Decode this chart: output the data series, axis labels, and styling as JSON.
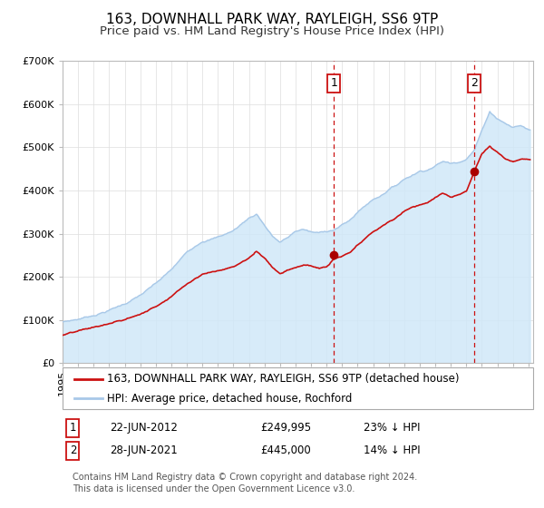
{
  "title": "163, DOWNHALL PARK WAY, RAYLEIGH, SS6 9TP",
  "subtitle": "Price paid vs. HM Land Registry's House Price Index (HPI)",
  "ylim": [
    0,
    700000
  ],
  "yticks": [
    0,
    100000,
    200000,
    300000,
    400000,
    500000,
    600000,
    700000
  ],
  "ytick_labels": [
    "£0",
    "£100K",
    "£200K",
    "£300K",
    "£400K",
    "£500K",
    "£600K",
    "£700K"
  ],
  "hpi_color": "#a8c8e8",
  "hpi_fill_color": "#d0e8f8",
  "price_color": "#cc1111",
  "marker_color": "#aa0000",
  "vline_color": "#cc1111",
  "grid_color": "#dddddd",
  "purchase1_year": 2012.47,
  "purchase1_price": 249995,
  "purchase1_label": "1",
  "purchase2_year": 2021.48,
  "purchase2_price": 445000,
  "purchase2_label": "2",
  "legend_line1": "163, DOWNHALL PARK WAY, RAYLEIGH, SS6 9TP (detached house)",
  "legend_line2": "HPI: Average price, detached house, Rochford",
  "note1_label": "1",
  "note1_date": "22-JUN-2012",
  "note1_price": "£249,995",
  "note1_pct": "23% ↓ HPI",
  "note2_label": "2",
  "note2_date": "28-JUN-2021",
  "note2_price": "£445,000",
  "note2_pct": "14% ↓ HPI",
  "footer": "Contains HM Land Registry data © Crown copyright and database right 2024.\nThis data is licensed under the Open Government Licence v3.0.",
  "title_fontsize": 11,
  "subtitle_fontsize": 9.5,
  "tick_fontsize": 8,
  "legend_fontsize": 8.5,
  "note_fontsize": 8.5,
  "footer_fontsize": 7,
  "hpi_keypoints": [
    [
      1995.0,
      95000
    ],
    [
      1996.0,
      102000
    ],
    [
      1997.0,
      112000
    ],
    [
      1998.0,
      125000
    ],
    [
      1999.0,
      140000
    ],
    [
      2000.0,
      160000
    ],
    [
      2001.0,
      185000
    ],
    [
      2002.0,
      215000
    ],
    [
      2003.0,
      255000
    ],
    [
      2004.0,
      285000
    ],
    [
      2005.0,
      295000
    ],
    [
      2006.0,
      310000
    ],
    [
      2007.0,
      340000
    ],
    [
      2007.5,
      350000
    ],
    [
      2008.0,
      325000
    ],
    [
      2008.5,
      300000
    ],
    [
      2009.0,
      285000
    ],
    [
      2009.5,
      295000
    ],
    [
      2010.0,
      310000
    ],
    [
      2010.5,
      315000
    ],
    [
      2011.0,
      308000
    ],
    [
      2011.5,
      305000
    ],
    [
      2012.0,
      310000
    ],
    [
      2012.5,
      315000
    ],
    [
      2013.0,
      325000
    ],
    [
      2013.5,
      335000
    ],
    [
      2014.0,
      355000
    ],
    [
      2014.5,
      370000
    ],
    [
      2015.0,
      385000
    ],
    [
      2015.5,
      395000
    ],
    [
      2016.0,
      410000
    ],
    [
      2016.5,
      420000
    ],
    [
      2017.0,
      435000
    ],
    [
      2017.5,
      445000
    ],
    [
      2018.0,
      455000
    ],
    [
      2018.5,
      460000
    ],
    [
      2019.0,
      470000
    ],
    [
      2019.5,
      480000
    ],
    [
      2020.0,
      475000
    ],
    [
      2020.5,
      480000
    ],
    [
      2021.0,
      490000
    ],
    [
      2021.5,
      510000
    ],
    [
      2022.0,
      555000
    ],
    [
      2022.5,
      600000
    ],
    [
      2023.0,
      585000
    ],
    [
      2023.5,
      575000
    ],
    [
      2024.0,
      565000
    ],
    [
      2024.5,
      570000
    ],
    [
      2025.0,
      560000
    ]
  ],
  "price_keypoints": [
    [
      1995.0,
      65000
    ],
    [
      1996.0,
      72000
    ],
    [
      1997.0,
      80000
    ],
    [
      1998.0,
      88000
    ],
    [
      1999.0,
      97000
    ],
    [
      2000.0,
      110000
    ],
    [
      2001.0,
      128000
    ],
    [
      2002.0,
      155000
    ],
    [
      2003.0,
      185000
    ],
    [
      2004.0,
      210000
    ],
    [
      2005.0,
      218000
    ],
    [
      2006.0,
      228000
    ],
    [
      2007.0,
      248000
    ],
    [
      2007.5,
      263000
    ],
    [
      2008.0,
      250000
    ],
    [
      2008.5,
      230000
    ],
    [
      2009.0,
      215000
    ],
    [
      2009.5,
      225000
    ],
    [
      2010.0,
      232000
    ],
    [
      2010.5,
      238000
    ],
    [
      2011.0,
      235000
    ],
    [
      2011.5,
      230000
    ],
    [
      2012.0,
      232000
    ],
    [
      2012.47,
      249995
    ],
    [
      2013.0,
      255000
    ],
    [
      2013.5,
      262000
    ],
    [
      2014.0,
      278000
    ],
    [
      2014.5,
      292000
    ],
    [
      2015.0,
      308000
    ],
    [
      2015.5,
      318000
    ],
    [
      2016.0,
      330000
    ],
    [
      2016.5,
      340000
    ],
    [
      2017.0,
      355000
    ],
    [
      2017.5,
      365000
    ],
    [
      2018.0,
      372000
    ],
    [
      2018.5,
      378000
    ],
    [
      2019.0,
      388000
    ],
    [
      2019.5,
      398000
    ],
    [
      2020.0,
      388000
    ],
    [
      2020.5,
      392000
    ],
    [
      2021.0,
      400000
    ],
    [
      2021.48,
      445000
    ],
    [
      2022.0,
      490000
    ],
    [
      2022.5,
      510000
    ],
    [
      2023.0,
      495000
    ],
    [
      2023.5,
      480000
    ],
    [
      2024.0,
      472000
    ],
    [
      2024.5,
      478000
    ],
    [
      2025.0,
      480000
    ]
  ]
}
